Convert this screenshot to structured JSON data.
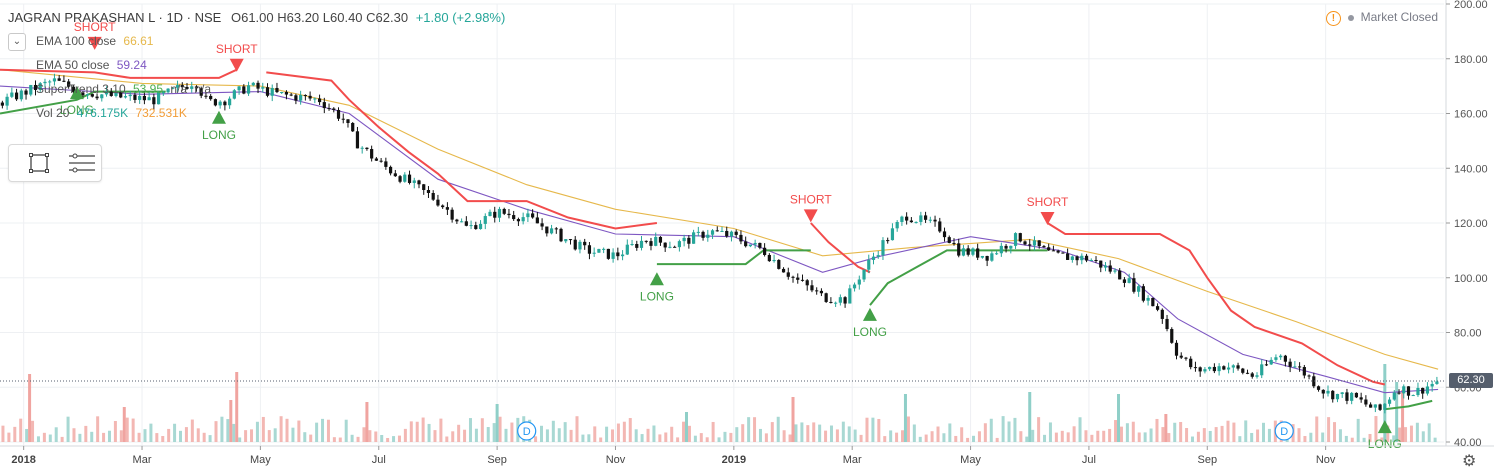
{
  "header": {
    "symbol": "JAGRAN PRAKASHAN L · 1D · NSE",
    "ohlc": "O61.00 H63.20 L60.40 C62.30",
    "change": "+1.80 (+2.98%)"
  },
  "indicators": [
    {
      "label": "EMA 100 close",
      "value": "66.61",
      "color": "#e6b84b"
    },
    {
      "label": "EMA 50 close",
      "value": "59.24",
      "color": "#7e57c2"
    },
    {
      "label": "SuperTrend 3 10",
      "value": "53.95",
      "extra": "n/a",
      "extra2": "n/a",
      "color": "#4caf50"
    },
    {
      "label": "Vol 20",
      "value": "476.175K",
      "value2": "732.531K",
      "color": "#26a69a",
      "color2": "#f29d38"
    }
  ],
  "market_status": "Market Closed",
  "icons": [
    "warning-icon",
    "rectangle-tool-icon",
    "lines-tool-icon",
    "settings-gear-icon",
    "collapse-chevron-icon"
  ],
  "chart_data": {
    "type": "candlestick",
    "y_axis_ticks": [
      "200.00",
      "180.00",
      "160.00",
      "140.00",
      "120.00",
      "100.00",
      "80.00",
      "60.00",
      "40.00"
    ],
    "ylim": [
      40,
      200
    ],
    "x_axis_ticks": [
      {
        "label": "2018",
        "bold": true,
        "t": 0.0
      },
      {
        "label": "Mar",
        "t": 2.0
      },
      {
        "label": "May",
        "t": 4.0
      },
      {
        "label": "Jul",
        "t": 6.0
      },
      {
        "label": "Sep",
        "t": 8.0
      },
      {
        "label": "Nov",
        "t": 10.0
      },
      {
        "label": "2019",
        "bold": true,
        "t": 12.0
      },
      {
        "label": "Mar",
        "t": 14.0
      },
      {
        "label": "May",
        "t": 16.0
      },
      {
        "label": "Jul",
        "t": 18.0
      },
      {
        "label": "Sep",
        "t": 20.0
      },
      {
        "label": "Nov",
        "t": 22.0
      }
    ],
    "last_price": "62.30",
    "last_price_value": 62.3,
    "close_path": [
      {
        "t": -0.4,
        "v": 164
      },
      {
        "t": 0.5,
        "v": 172
      },
      {
        "t": 1.0,
        "v": 168
      },
      {
        "t": 1.6,
        "v": 166
      },
      {
        "t": 2.2,
        "v": 165
      },
      {
        "t": 2.9,
        "v": 172
      },
      {
        "t": 3.1,
        "v": 164
      },
      {
        "t": 3.4,
        "v": 165
      },
      {
        "t": 3.8,
        "v": 170
      },
      {
        "t": 4.3,
        "v": 167
      },
      {
        "t": 5.0,
        "v": 165
      },
      {
        "t": 5.4,
        "v": 158
      },
      {
        "t": 5.6,
        "v": 150
      },
      {
        "t": 6.0,
        "v": 142
      },
      {
        "t": 6.5,
        "v": 135
      },
      {
        "t": 7.0,
        "v": 128
      },
      {
        "t": 7.5,
        "v": 118
      },
      {
        "t": 8.0,
        "v": 124
      },
      {
        "t": 8.5,
        "v": 122
      },
      {
        "t": 9.0,
        "v": 116
      },
      {
        "t": 9.5,
        "v": 110
      },
      {
        "t": 10.0,
        "v": 108
      },
      {
        "t": 10.5,
        "v": 114
      },
      {
        "t": 11.0,
        "v": 112
      },
      {
        "t": 11.6,
        "v": 117
      },
      {
        "t": 12.0,
        "v": 115
      },
      {
        "t": 12.5,
        "v": 110
      },
      {
        "t": 13.0,
        "v": 100
      },
      {
        "t": 13.5,
        "v": 93
      },
      {
        "t": 13.9,
        "v": 92
      },
      {
        "t": 14.1,
        "v": 100
      },
      {
        "t": 14.5,
        "v": 112
      },
      {
        "t": 14.9,
        "v": 123
      },
      {
        "t": 15.5,
        "v": 118
      },
      {
        "t": 15.8,
        "v": 110
      },
      {
        "t": 16.3,
        "v": 108
      },
      {
        "t": 16.8,
        "v": 115
      },
      {
        "t": 17.4,
        "v": 108
      },
      {
        "t": 18.0,
        "v": 107
      },
      {
        "t": 18.6,
        "v": 100
      },
      {
        "t": 19.2,
        "v": 88
      },
      {
        "t": 19.5,
        "v": 72
      },
      {
        "t": 19.8,
        "v": 66
      },
      {
        "t": 20.3,
        "v": 68
      },
      {
        "t": 20.8,
        "v": 64
      },
      {
        "t": 21.2,
        "v": 72
      },
      {
        "t": 21.6,
        "v": 66
      },
      {
        "t": 22.0,
        "v": 58
      },
      {
        "t": 22.5,
        "v": 56
      },
      {
        "t": 22.9,
        "v": 51
      },
      {
        "t": 23.2,
        "v": 60
      },
      {
        "t": 23.5,
        "v": 58
      },
      {
        "t": 23.9,
        "v": 62.3
      }
    ],
    "ema100_path": [
      {
        "t": -0.4,
        "v": 176
      },
      {
        "t": 2.0,
        "v": 171
      },
      {
        "t": 4.0,
        "v": 170
      },
      {
        "t": 5.5,
        "v": 163
      },
      {
        "t": 7.0,
        "v": 147
      },
      {
        "t": 8.5,
        "v": 134
      },
      {
        "t": 10.0,
        "v": 125
      },
      {
        "t": 12.0,
        "v": 118
      },
      {
        "t": 13.5,
        "v": 108
      },
      {
        "t": 15.0,
        "v": 111
      },
      {
        "t": 17.0,
        "v": 114
      },
      {
        "t": 18.5,
        "v": 107
      },
      {
        "t": 20.0,
        "v": 95
      },
      {
        "t": 21.5,
        "v": 84
      },
      {
        "t": 23.0,
        "v": 72
      },
      {
        "t": 23.9,
        "v": 66.6
      }
    ],
    "ema50_path": [
      {
        "t": -0.4,
        "v": 170
      },
      {
        "t": 2.0,
        "v": 167
      },
      {
        "t": 4.0,
        "v": 168
      },
      {
        "t": 5.5,
        "v": 160
      },
      {
        "t": 7.0,
        "v": 136
      },
      {
        "t": 8.5,
        "v": 125
      },
      {
        "t": 10.0,
        "v": 116
      },
      {
        "t": 12.0,
        "v": 115
      },
      {
        "t": 13.5,
        "v": 102
      },
      {
        "t": 14.5,
        "v": 108
      },
      {
        "t": 16.0,
        "v": 115
      },
      {
        "t": 17.5,
        "v": 110
      },
      {
        "t": 18.6,
        "v": 102
      },
      {
        "t": 19.5,
        "v": 85
      },
      {
        "t": 20.6,
        "v": 72
      },
      {
        "t": 22.0,
        "v": 64
      },
      {
        "t": 23.0,
        "v": 58
      },
      {
        "t": 23.9,
        "v": 59.2
      }
    ],
    "supertrend_short": [
      [
        {
          "t": -0.4,
          "v": 176
        },
        {
          "t": 1.2,
          "v": 175
        },
        {
          "t": 1.8,
          "v": 173
        },
        {
          "t": 3.3,
          "v": 173
        },
        {
          "t": 3.6,
          "v": 176
        }
      ],
      [
        {
          "t": 4.1,
          "v": 175
        },
        {
          "t": 5.2,
          "v": 172
        },
        {
          "t": 5.5,
          "v": 165
        },
        {
          "t": 6.0,
          "v": 155
        },
        {
          "t": 6.5,
          "v": 146
        },
        {
          "t": 7.0,
          "v": 138
        },
        {
          "t": 7.5,
          "v": 128
        },
        {
          "t": 8.5,
          "v": 128
        },
        {
          "t": 9.2,
          "v": 122
        },
        {
          "t": 10.0,
          "v": 118
        },
        {
          "t": 10.7,
          "v": 120
        }
      ],
      [
        {
          "t": 13.3,
          "v": 120
        },
        {
          "t": 13.6,
          "v": 113
        },
        {
          "t": 14.1,
          "v": 104
        },
        {
          "t": 14.3,
          "v": 102
        }
      ],
      [
        {
          "t": 17.3,
          "v": 120
        },
        {
          "t": 17.6,
          "v": 116
        },
        {
          "t": 19.2,
          "v": 116
        },
        {
          "t": 19.7,
          "v": 110
        },
        {
          "t": 20.0,
          "v": 100
        },
        {
          "t": 20.4,
          "v": 88
        },
        {
          "t": 20.8,
          "v": 82
        },
        {
          "t": 21.6,
          "v": 76
        },
        {
          "t": 22.2,
          "v": 68
        },
        {
          "t": 22.8,
          "v": 62
        },
        {
          "t": 23.0,
          "v": 61
        }
      ]
    ],
    "supertrend_long": [
      [
        {
          "t": -0.4,
          "v": 160
        },
        {
          "t": 0.9,
          "v": 165
        },
        {
          "t": 1.2,
          "v": 168
        },
        {
          "t": 2.4,
          "v": 168
        }
      ],
      [
        {
          "t": 10.7,
          "v": 105
        },
        {
          "t": 12.2,
          "v": 105
        },
        {
          "t": 12.5,
          "v": 110
        },
        {
          "t": 13.3,
          "v": 110
        }
      ],
      [
        {
          "t": 14.3,
          "v": 90
        },
        {
          "t": 14.6,
          "v": 98
        },
        {
          "t": 15.1,
          "v": 104
        },
        {
          "t": 15.6,
          "v": 110
        },
        {
          "t": 17.3,
          "v": 110
        }
      ],
      [
        {
          "t": 23.0,
          "v": 52
        },
        {
          "t": 23.4,
          "v": 53
        },
        {
          "t": 23.8,
          "v": 55
        }
      ]
    ],
    "signals": [
      {
        "type": "SHORT",
        "t": 1.2,
        "v": 188
      },
      {
        "type": "LONG",
        "t": 0.9,
        "v": 170
      },
      {
        "type": "LONG",
        "t": 3.3,
        "v": 161
      },
      {
        "type": "SHORT",
        "t": 3.6,
        "v": 180
      },
      {
        "type": "LONG",
        "t": 10.7,
        "v": 102
      },
      {
        "type": "SHORT",
        "t": 13.3,
        "v": 125
      },
      {
        "type": "LONG",
        "t": 14.3,
        "v": 89
      },
      {
        "type": "SHORT",
        "t": 17.3,
        "v": 124
      },
      {
        "type": "LONG",
        "t": 23.0,
        "v": 48
      }
    ],
    "dividend_markers": [
      {
        "label": "D",
        "t": 8.5
      },
      {
        "label": "D",
        "t": 21.3
      }
    ],
    "volume_spikes": [
      {
        "t": 0.1,
        "h": 68,
        "up": false
      },
      {
        "t": 1.7,
        "h": 35,
        "up": false
      },
      {
        "t": 3.6,
        "h": 70,
        "up": false
      },
      {
        "t": 3.5,
        "h": 42,
        "up": false
      },
      {
        "t": 5.8,
        "h": 40,
        "up": false
      },
      {
        "t": 8.0,
        "h": 38,
        "up": true
      },
      {
        "t": 11.2,
        "h": 30,
        "up": true
      },
      {
        "t": 13.0,
        "h": 45,
        "up": false
      },
      {
        "t": 14.9,
        "h": 48,
        "up": true
      },
      {
        "t": 17.0,
        "h": 50,
        "up": true
      },
      {
        "t": 18.5,
        "h": 48,
        "up": true
      },
      {
        "t": 19.3,
        "h": 28,
        "up": false
      },
      {
        "t": 23.0,
        "h": 78,
        "up": true
      },
      {
        "t": 23.2,
        "h": 60,
        "up": true
      },
      {
        "t": 23.3,
        "h": 52,
        "up": false
      }
    ]
  }
}
